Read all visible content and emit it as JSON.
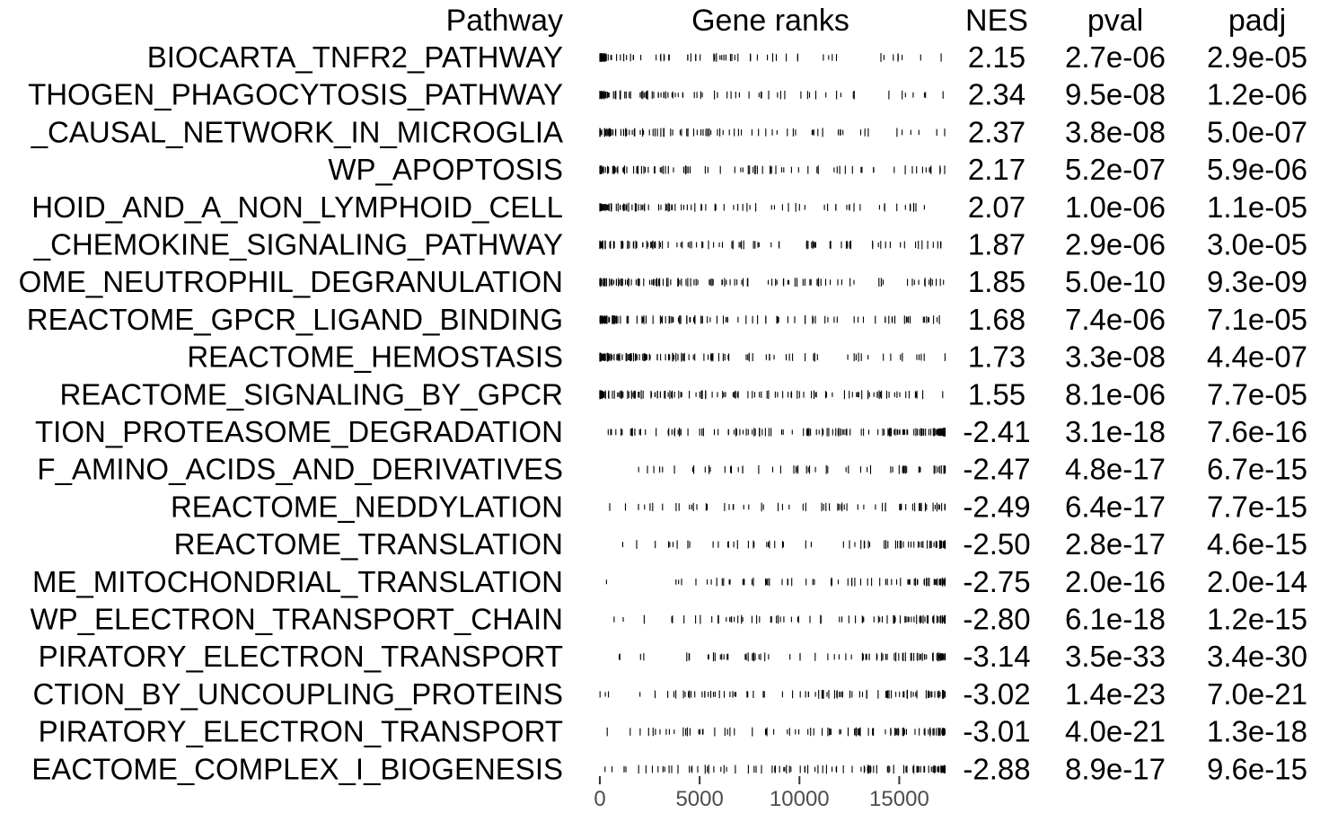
{
  "chart_data": {
    "type": "table",
    "columns": {
      "pathway": "Pathway",
      "gene_ranks": "Gene ranks",
      "nes": "NES",
      "pval": "pval",
      "padj": "padj"
    },
    "gene_ranks_axis": {
      "range": [
        0,
        17500
      ],
      "ticks": [
        0,
        5000,
        10000,
        15000
      ],
      "tick_labels": [
        "0",
        "5000",
        "10000",
        "15000"
      ]
    },
    "rows": [
      {
        "pathway": "BIOCARTA_TNFR2_PATHWAY",
        "nes": "2.15",
        "pval": "2.7e-06",
        "padj": "2.9e-05"
      },
      {
        "pathway": "THOGEN_PHAGOCYTOSIS_PATHWAY",
        "nes": "2.34",
        "pval": "9.5e-08",
        "padj": "1.2e-06"
      },
      {
        "pathway": "_CAUSAL_NETWORK_IN_MICROGLIA",
        "nes": "2.37",
        "pval": "3.8e-08",
        "padj": "5.0e-07"
      },
      {
        "pathway": "WP_APOPTOSIS",
        "nes": "2.17",
        "pval": "5.2e-07",
        "padj": "5.9e-06"
      },
      {
        "pathway": "HOID_AND_A_NON_LYMPHOID_CELL",
        "nes": "2.07",
        "pval": "1.0e-06",
        "padj": "1.1e-05"
      },
      {
        "pathway": "_CHEMOKINE_SIGNALING_PATHWAY",
        "nes": "1.87",
        "pval": "2.9e-06",
        "padj": "3.0e-05"
      },
      {
        "pathway": "OME_NEUTROPHIL_DEGRANULATION",
        "nes": "1.85",
        "pval": "5.0e-10",
        "padj": "9.3e-09"
      },
      {
        "pathway": "REACTOME_GPCR_LIGAND_BINDING",
        "nes": "1.68",
        "pval": "7.4e-06",
        "padj": "7.1e-05"
      },
      {
        "pathway": "REACTOME_HEMOSTASIS",
        "nes": "1.73",
        "pval": "3.3e-08",
        "padj": "4.4e-07"
      },
      {
        "pathway": "REACTOME_SIGNALING_BY_GPCR",
        "nes": "1.55",
        "pval": "8.1e-06",
        "padj": "7.7e-05"
      },
      {
        "pathway": "TION_PROTEASOME_DEGRADATION",
        "nes": "-2.41",
        "pval": "3.1e-18",
        "padj": "7.6e-16"
      },
      {
        "pathway": "F_AMINO_ACIDS_AND_DERIVATIVES",
        "nes": "-2.47",
        "pval": "4.8e-17",
        "padj": "6.7e-15"
      },
      {
        "pathway": "REACTOME_NEDDYLATION",
        "nes": "-2.49",
        "pval": "6.4e-17",
        "padj": "7.7e-15"
      },
      {
        "pathway": "REACTOME_TRANSLATION",
        "nes": "-2.50",
        "pval": "2.8e-17",
        "padj": "4.6e-15"
      },
      {
        "pathway": "ME_MITOCHONDRIAL_TRANSLATION",
        "nes": "-2.75",
        "pval": "2.0e-16",
        "padj": "2.0e-14"
      },
      {
        "pathway": "WP_ELECTRON_TRANSPORT_CHAIN",
        "nes": "-2.80",
        "pval": "6.1e-18",
        "padj": "1.2e-15"
      },
      {
        "pathway": "PIRATORY_ELECTRON_TRANSPORT",
        "nes": "-3.14",
        "pval": "3.5e-33",
        "padj": "3.4e-30"
      },
      {
        "pathway": "CTION_BY_UNCOUPLING_PROTEINS",
        "nes": "-3.02",
        "pval": "1.4e-23",
        "padj": "7.0e-21"
      },
      {
        "pathway": "PIRATORY_ELECTRON_TRANSPORT",
        "nes": "-3.01",
        "pval": "4.0e-21",
        "padj": "1.3e-18"
      },
      {
        "pathway": "EACTOME_COMPLEX_I_BIOGENESIS",
        "nes": "-2.88",
        "pval": "8.9e-17",
        "padj": "9.6e-15"
      }
    ]
  }
}
